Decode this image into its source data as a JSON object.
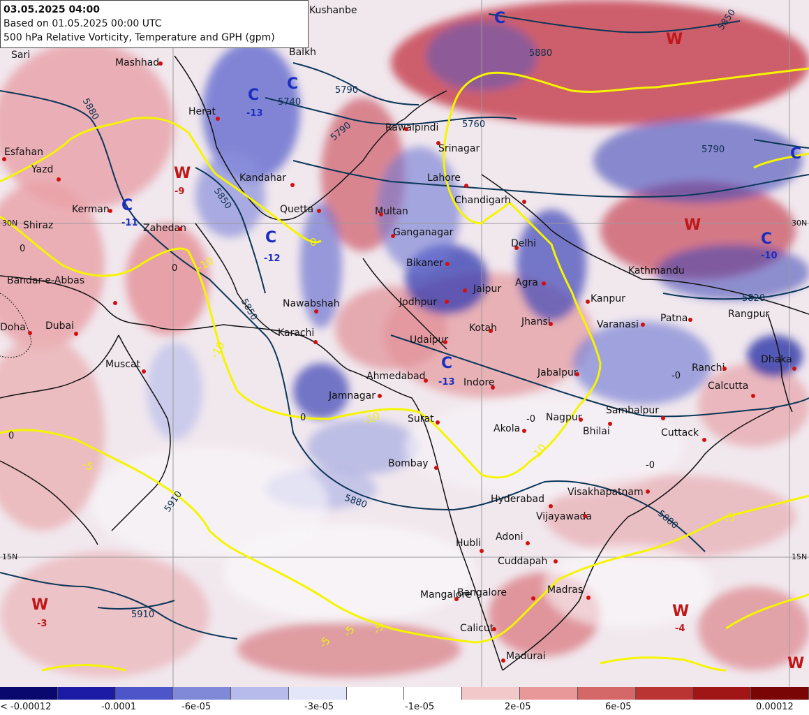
{
  "header": {
    "valid_time": "03.05.2025 04:00",
    "run_time": "Based on 01.05.2025 00:00 UTC",
    "title": "500 hPa Relative Vorticity, Temperature and GPH (gpm)"
  },
  "cities": [
    "Kushanbe",
    "Balkh",
    "Mashhad",
    "Sari",
    "Herat",
    "Esfahan",
    "Yazd",
    "Kandahar",
    "Kerman",
    "Shiraz",
    "Zahedan",
    "Quetta",
    "Multan",
    "Lahore",
    "Srinagar",
    "Rawalpindi",
    "Chandigarh",
    "Ganganagar",
    "Bikaner",
    "Jaipur",
    "Agra",
    "Delhi",
    "Kanpur",
    "Jodhpur",
    "Nawabshah",
    "Karachi",
    "Bandar-e-Abbas",
    "Doha",
    "Dubai",
    "Muscat",
    "Udaipur",
    "Kotah",
    "Jhansi",
    "Varanasi",
    "Patna",
    "Rangpur",
    "Dhaka",
    "Ranchi",
    "Calcutta",
    "Jabalpur",
    "Ahmedabad",
    "Indore",
    "Jamnagar",
    "Surat",
    "Bombay",
    "Akola",
    "Nagpur",
    "Bhilai",
    "Sambalpur",
    "Cuttack",
    "Hyderabad",
    "Visakhapatnam",
    "Vijayawada",
    "Hubli",
    "Adoni",
    "Cuddapah",
    "Mangalore",
    "Bangalore",
    "Madras",
    "Calicut",
    "Madurai",
    "Kathmandu"
  ],
  "systems": [
    {
      "type": "C",
      "value": "-13",
      "color": "#1a2fc0"
    },
    {
      "type": "C",
      "value": "",
      "color": "#1a2fc0"
    },
    {
      "type": "C",
      "value": "",
      "color": "#1a2fc0"
    },
    {
      "type": "W",
      "value": "-9",
      "color": "#c01818"
    },
    {
      "type": "C",
      "value": "-11",
      "color": "#1a2fc0"
    },
    {
      "type": "C",
      "value": "-12",
      "color": "#1a2fc0"
    },
    {
      "type": "C",
      "value": "-13",
      "color": "#1a2fc0"
    },
    {
      "type": "W",
      "value": "",
      "color": "#c01818"
    },
    {
      "type": "W",
      "value": "",
      "color": "#c01818"
    },
    {
      "type": "C",
      "value": "-10",
      "color": "#1a2fc0"
    },
    {
      "type": "C",
      "value": "",
      "color": "#1a2fc0"
    },
    {
      "type": "W",
      "value": "-3",
      "color": "#c01818"
    },
    {
      "type": "W",
      "value": "-4",
      "color": "#c01818"
    },
    {
      "type": "W",
      "value": "",
      "color": "#c01818"
    }
  ],
  "gph_labels": [
    "5880",
    "5850",
    "5740",
    "5790",
    "5790",
    "5760",
    "5790",
    "5850",
    "5850",
    "5880",
    "5880",
    "5910",
    "5910",
    "5880",
    "5820",
    "5790",
    "5790"
  ],
  "temp_labels": [
    "-10",
    "-10",
    "-10",
    "-10",
    "-5",
    "-5",
    "-5",
    "-5",
    "-5",
    "0",
    "0",
    "0",
    "0",
    "-0",
    "-0",
    "-0",
    "0"
  ],
  "lat_labels": [
    "30N",
    "30N",
    "15N",
    "15N"
  ],
  "legend": {
    "colors": [
      "#08086e",
      "#1b1ba6",
      "#4e55c8",
      "#8088d8",
      "#b7bbec",
      "#e3e5f8",
      "#ffffff",
      "#ffffff",
      "#f2c8c8",
      "#e89898",
      "#d46868",
      "#bb3434",
      "#a01616",
      "#7a0505"
    ],
    "labels": [
      "< -0.00012",
      "-0.0001",
      "-6e-05",
      "-3e-05",
      "-1e-05",
      "2e-05",
      "6e-05",
      "0.00012"
    ]
  }
}
